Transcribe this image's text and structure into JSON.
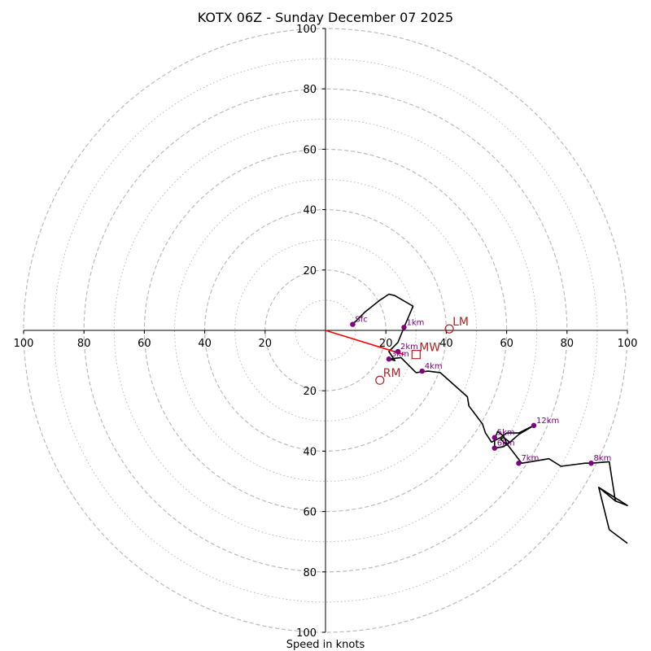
{
  "chart_data": {
    "type": "hodograph",
    "title": "KOTX 06Z - Sunday December 07 2025",
    "xlabel": "Speed in knots",
    "units": "knots",
    "x_range": [
      -100,
      100
    ],
    "y_range": [
      -100,
      100
    ],
    "rings_dashed": [
      20,
      40,
      60,
      80,
      100
    ],
    "rings_dotted": [
      10,
      30,
      50,
      70,
      90
    ],
    "x_tick_labels": [
      {
        "value": -100,
        "label": "100"
      },
      {
        "value": -80,
        "label": "80"
      },
      {
        "value": -60,
        "label": "60"
      },
      {
        "value": -40,
        "label": "40"
      },
      {
        "value": -20,
        "label": "20"
      },
      {
        "value": 20,
        "label": "20"
      },
      {
        "value": 40,
        "label": "40"
      },
      {
        "value": 60,
        "label": "60"
      },
      {
        "value": 80,
        "label": "80"
      },
      {
        "value": 100,
        "label": "100"
      }
    ],
    "y_tick_labels": [
      {
        "value": 100,
        "label": "100"
      },
      {
        "value": 80,
        "label": "80"
      },
      {
        "value": 60,
        "label": "60"
      },
      {
        "value": 40,
        "label": "40"
      },
      {
        "value": 20,
        "label": "20"
      },
      {
        "value": -20,
        "label": "20"
      },
      {
        "value": -40,
        "label": "40"
      },
      {
        "value": -60,
        "label": "60"
      },
      {
        "value": -80,
        "label": "80"
      },
      {
        "value": -100,
        "label": "100"
      }
    ],
    "hodograph_trace": [
      [
        9,
        2
      ],
      [
        13,
        6
      ],
      [
        18,
        10
      ],
      [
        21,
        12
      ],
      [
        23,
        11.5
      ],
      [
        29,
        8
      ],
      [
        26,
        1
      ],
      [
        24,
        -4
      ],
      [
        21,
        -7
      ],
      [
        23,
        -10
      ],
      [
        21,
        -9.5
      ],
      [
        25,
        -9
      ],
      [
        30,
        -14
      ],
      [
        34,
        -13.5
      ],
      [
        38,
        -14
      ],
      [
        47,
        -22
      ],
      [
        47.5,
        -25
      ],
      [
        52,
        -31
      ],
      [
        53,
        -34
      ],
      [
        55,
        -37
      ],
      [
        58,
        -35.5
      ],
      [
        60,
        -34
      ],
      [
        64,
        -34
      ],
      [
        69,
        -31.5
      ],
      [
        64,
        -34.5
      ],
      [
        60,
        -38
      ],
      [
        58,
        -36
      ],
      [
        59,
        -35.5
      ],
      [
        61,
        -37
      ],
      [
        59,
        -38.5
      ],
      [
        56,
        -39
      ],
      [
        56,
        -36
      ],
      [
        57,
        -33.5
      ],
      [
        59,
        -35
      ],
      [
        60,
        -37.5
      ],
      [
        65,
        -44
      ],
      [
        68,
        -43.5
      ],
      [
        74,
        -42.5
      ],
      [
        78,
        -45
      ],
      [
        86,
        -44
      ],
      [
        88,
        -44
      ],
      [
        94,
        -43.5
      ],
      [
        96,
        -56.5
      ],
      [
        90.5,
        -52
      ],
      [
        96,
        -56.5
      ],
      [
        100,
        -58
      ],
      [
        100,
        -58
      ],
      [
        90.5,
        -52
      ],
      [
        94,
        -66
      ],
      [
        100,
        -70.5
      ]
    ],
    "height_markers": [
      {
        "label": "Sfc",
        "u": 9,
        "v": 2
      },
      {
        "label": "1km",
        "u": 26,
        "v": 1
      },
      {
        "label": "2km",
        "u": 24,
        "v": -7
      },
      {
        "label": "3km",
        "u": 21,
        "v": -9.5
      },
      {
        "label": "4km",
        "u": 32,
        "v": -13.5
      },
      {
        "label": "5km",
        "u": 56,
        "v": -35.5
      },
      {
        "label": "6km",
        "u": 56,
        "v": -39
      },
      {
        "label": "7km",
        "u": 64,
        "v": -44
      },
      {
        "label": "8km",
        "u": 88,
        "v": -44
      },
      {
        "label": "12km",
        "u": 69,
        "v": -31.5
      }
    ],
    "motion_markers": [
      {
        "label": "LM",
        "u": 41,
        "v": 0.5,
        "symbol": "circle"
      },
      {
        "label": "RM",
        "u": 18,
        "v": -16.5,
        "symbol": "circle"
      },
      {
        "label": "MW",
        "u": 30,
        "v": -8,
        "symbol": "square"
      }
    ],
    "shear_vector": {
      "from": [
        0,
        0
      ],
      "to": [
        26,
        -8
      ]
    },
    "colors": {
      "trace": "#000000",
      "height_markers": "#800080",
      "motion_markers": "#b22222",
      "shear_vector": "#ff0000",
      "rings": "#bbbbbb"
    }
  }
}
